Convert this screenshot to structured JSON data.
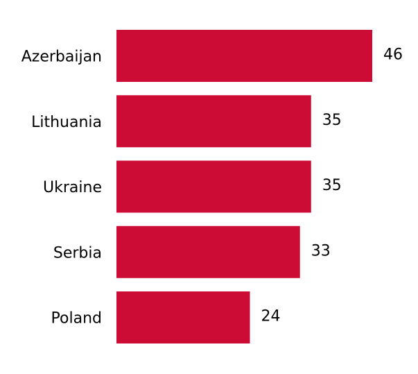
{
  "chart_data": {
    "type": "barh",
    "categories": [
      "Azerbaijan",
      "Lithuania",
      "Ukraine",
      "Serbia",
      "Poland"
    ],
    "values": [
      46,
      35,
      35,
      33,
      24
    ],
    "color": "#cc0c35"
  }
}
